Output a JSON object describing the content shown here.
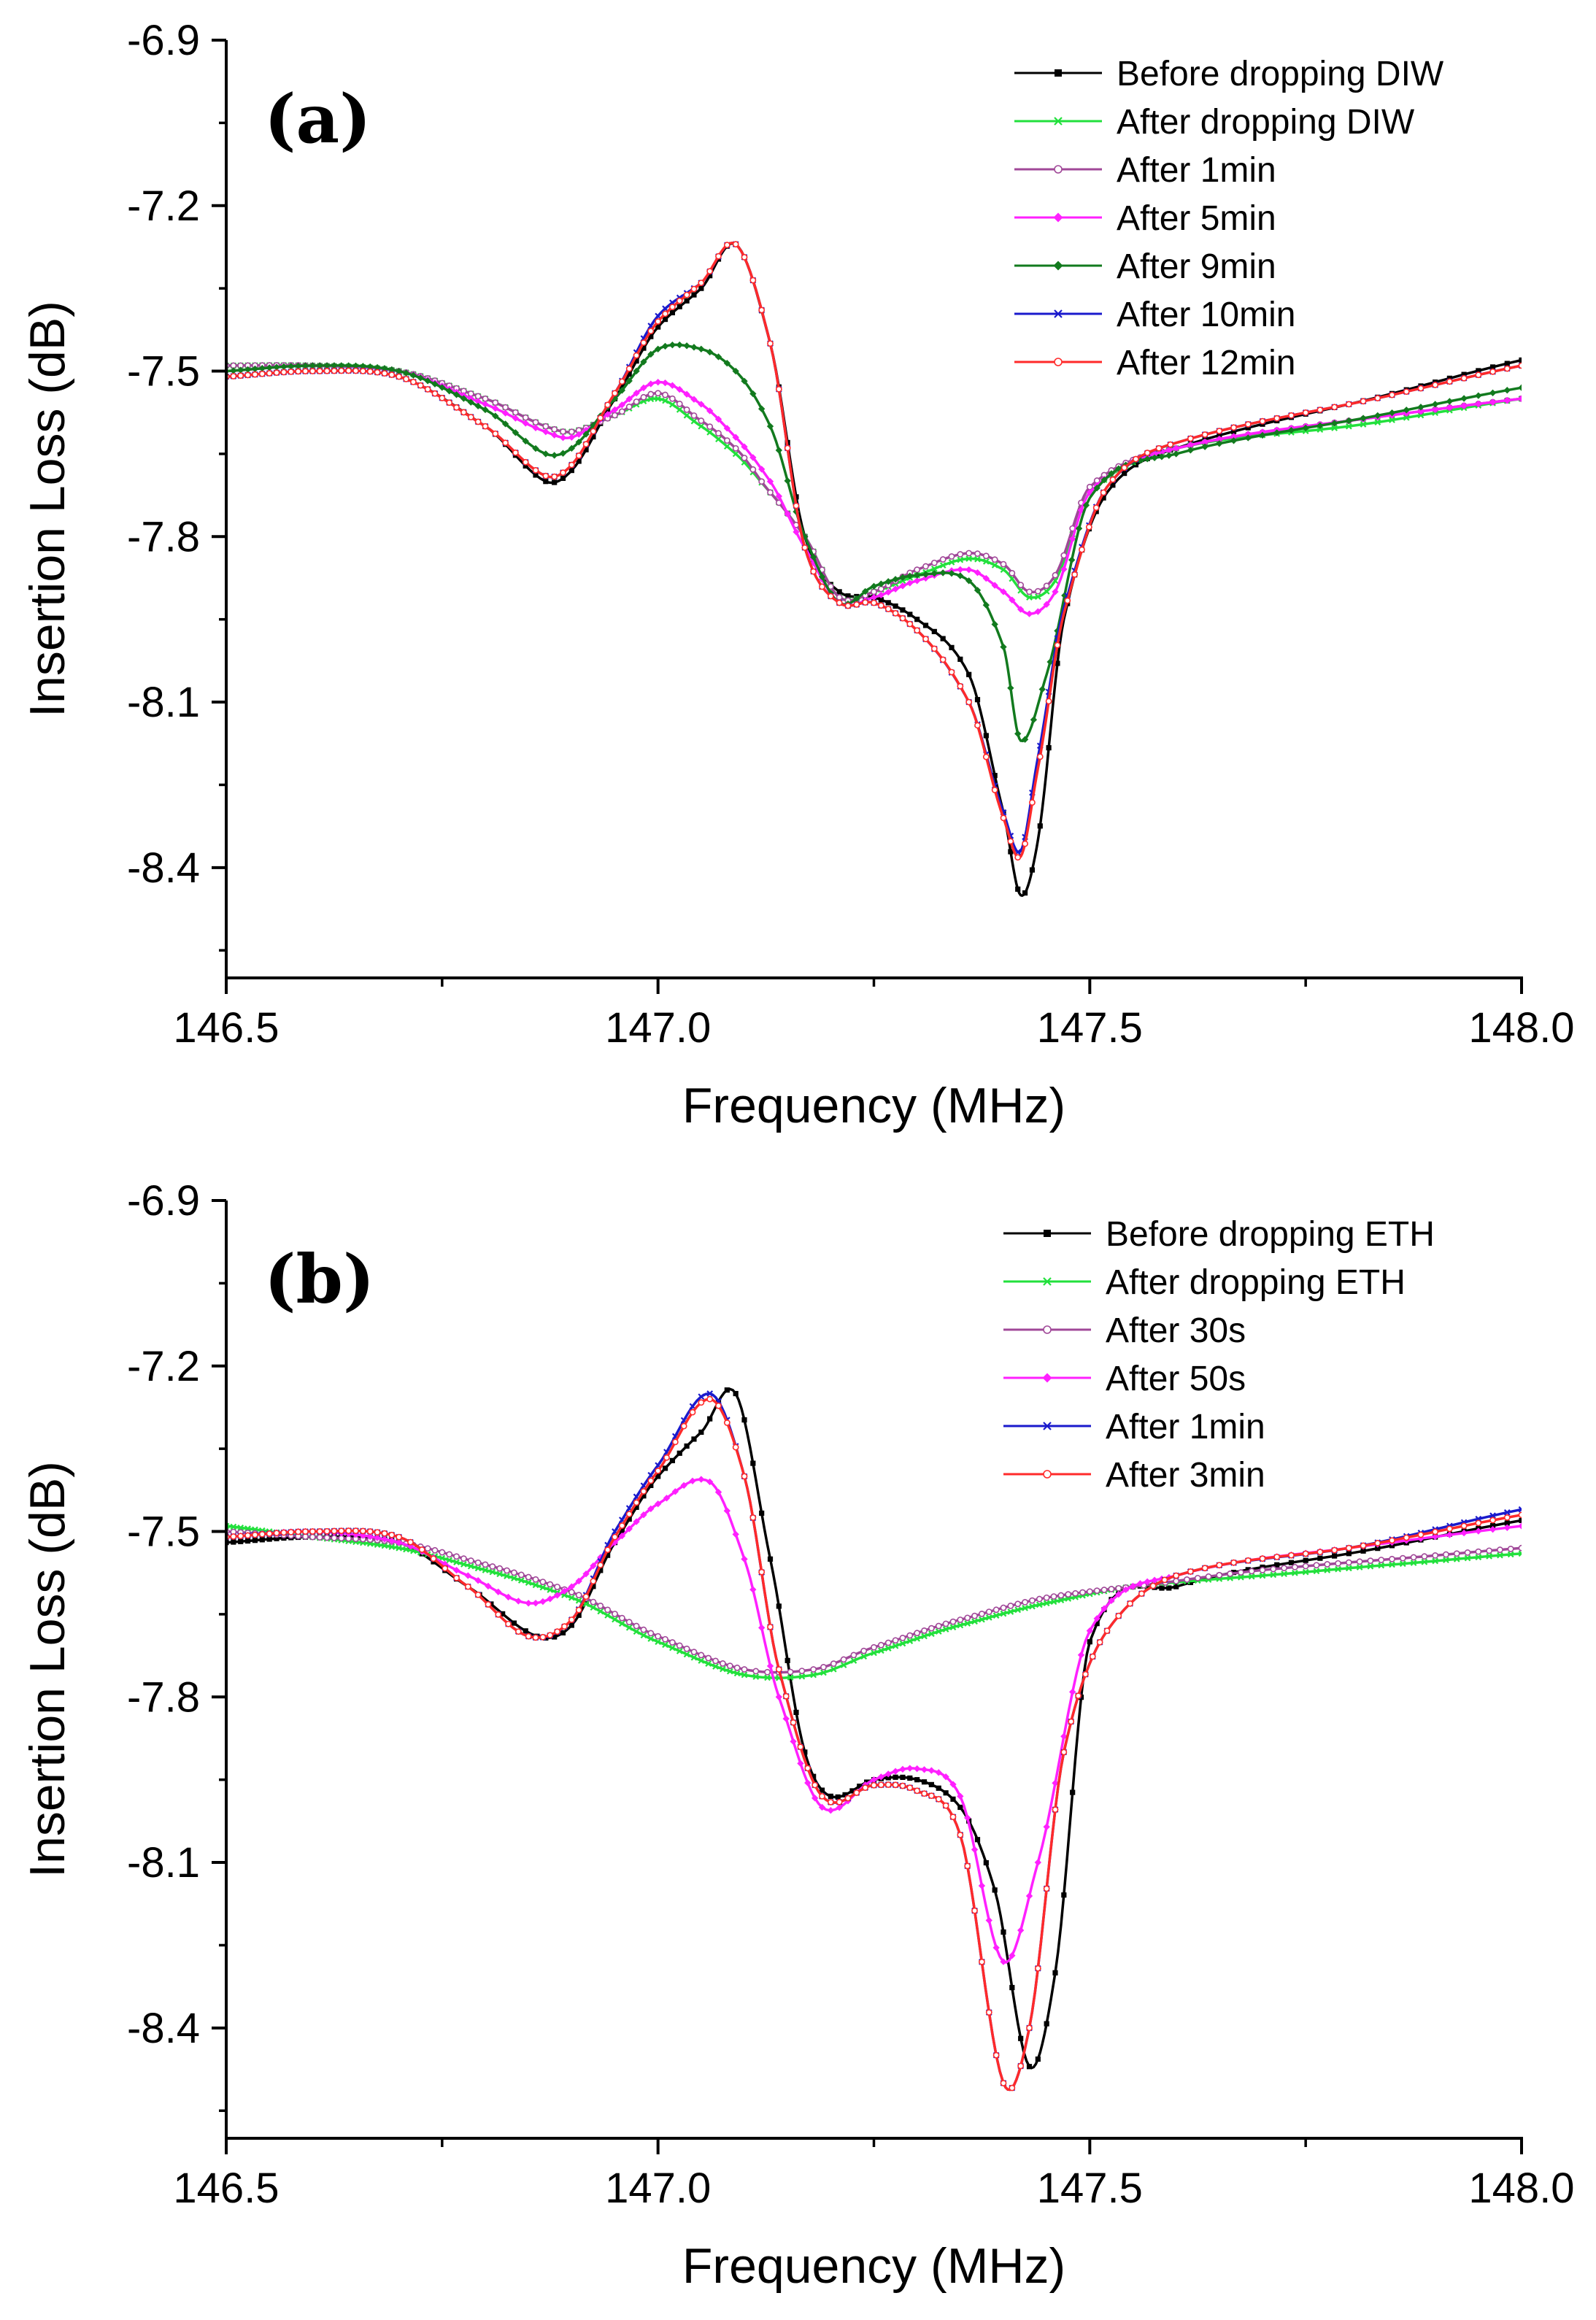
{
  "chart_data": [
    {
      "type": "line",
      "panel_label": "(a)",
      "xlabel": "Frequency (MHz)",
      "ylabel": "Insertion Loss (dB)",
      "xlim": [
        146.5,
        148.0
      ],
      "ylim": [
        -8.6,
        -6.9
      ],
      "x_ticks": [
        "146.5",
        "147.0",
        "147.5",
        "148.0"
      ],
      "x_tick_values": [
        146.5,
        147.0,
        147.5,
        148.0
      ],
      "y_ticks": [
        "-6.9",
        "-7.2",
        "-7.5",
        "-7.8",
        "-8.1",
        "-8.4"
      ],
      "y_tick_values": [
        -6.9,
        -7.2,
        -7.5,
        -7.8,
        -8.1,
        -8.4
      ],
      "legend_position": "top-right",
      "series": [
        {
          "name": "Before dropping DIW",
          "color": "#000000",
          "marker": "square",
          "x": [
            146.5,
            146.6,
            146.7,
            146.8,
            146.87,
            146.9,
            146.95,
            147.0,
            147.05,
            147.09,
            147.13,
            147.17,
            147.21,
            147.25,
            147.3,
            147.36,
            147.4,
            147.42,
            147.44,
            147.47,
            147.52,
            147.6,
            147.8,
            148.0
          ],
          "y": [
            -7.51,
            -7.5,
            -7.51,
            -7.6,
            -7.7,
            -7.68,
            -7.55,
            -7.42,
            -7.35,
            -7.27,
            -7.45,
            -7.8,
            -7.9,
            -7.91,
            -7.95,
            -8.05,
            -8.3,
            -8.45,
            -8.35,
            -7.95,
            -7.72,
            -7.64,
            -7.56,
            -7.48
          ]
        },
        {
          "name": "After dropping DIW",
          "color": "#22e03c",
          "marker": "x",
          "x": [
            146.5,
            146.6,
            146.7,
            146.8,
            146.87,
            146.9,
            146.95,
            147.0,
            147.05,
            147.09,
            147.13,
            147.17,
            147.21,
            147.25,
            147.3,
            147.36,
            147.4,
            147.43,
            147.46,
            147.5,
            147.6,
            147.8,
            148.0
          ],
          "y": [
            -7.49,
            -7.49,
            -7.5,
            -7.55,
            -7.6,
            -7.61,
            -7.58,
            -7.55,
            -7.6,
            -7.65,
            -7.72,
            -7.8,
            -7.91,
            -7.9,
            -7.87,
            -7.84,
            -7.86,
            -7.91,
            -7.88,
            -7.72,
            -7.64,
            -7.6,
            -7.55
          ]
        },
        {
          "name": "After 1min",
          "color": "#a04898",
          "marker": "circle",
          "x": [
            146.5,
            146.6,
            146.7,
            146.8,
            146.87,
            146.9,
            146.95,
            147.0,
            147.05,
            147.09,
            147.13,
            147.17,
            147.21,
            147.25,
            147.3,
            147.36,
            147.4,
            147.43,
            147.46,
            147.5,
            147.6,
            147.8,
            148.0
          ],
          "y": [
            -7.49,
            -7.49,
            -7.5,
            -7.55,
            -7.6,
            -7.61,
            -7.58,
            -7.54,
            -7.59,
            -7.64,
            -7.72,
            -7.8,
            -7.91,
            -7.9,
            -7.86,
            -7.83,
            -7.85,
            -7.9,
            -7.87,
            -7.71,
            -7.64,
            -7.59,
            -7.55
          ]
        },
        {
          "name": "After 5min",
          "color": "#ff20ff",
          "marker": "diamond",
          "x": [
            146.5,
            146.6,
            146.7,
            146.8,
            146.87,
            146.9,
            146.95,
            147.0,
            147.05,
            147.09,
            147.13,
            147.17,
            147.21,
            147.25,
            147.3,
            147.36,
            147.4,
            147.43,
            147.46,
            147.5,
            147.6,
            147.8,
            148.0
          ],
          "y": [
            -7.5,
            -7.49,
            -7.5,
            -7.56,
            -7.61,
            -7.62,
            -7.57,
            -7.52,
            -7.56,
            -7.62,
            -7.7,
            -7.82,
            -7.92,
            -7.91,
            -7.88,
            -7.86,
            -7.9,
            -7.94,
            -7.9,
            -7.72,
            -7.64,
            -7.59,
            -7.55
          ]
        },
        {
          "name": "After 9min",
          "color": "#127a1e",
          "marker": "diamond",
          "x": [
            146.5,
            146.6,
            146.7,
            146.8,
            146.87,
            146.9,
            146.95,
            147.0,
            147.05,
            147.09,
            147.13,
            147.17,
            147.21,
            147.25,
            147.3,
            147.36,
            147.4,
            147.42,
            147.45,
            147.5,
            147.6,
            147.8,
            148.0
          ],
          "y": [
            -7.5,
            -7.49,
            -7.5,
            -7.57,
            -7.65,
            -7.64,
            -7.55,
            -7.46,
            -7.46,
            -7.5,
            -7.6,
            -7.8,
            -7.92,
            -7.89,
            -7.87,
            -7.88,
            -8.0,
            -8.17,
            -8.05,
            -7.73,
            -7.65,
            -7.59,
            -7.53
          ]
        },
        {
          "name": "After 10min",
          "color": "#1a1acc",
          "marker": "x",
          "x": [
            146.5,
            146.6,
            146.7,
            146.8,
            146.87,
            146.9,
            146.95,
            147.0,
            147.05,
            147.09,
            147.13,
            147.17,
            147.21,
            147.25,
            147.3,
            147.36,
            147.4,
            147.42,
            147.44,
            147.47,
            147.52,
            147.6,
            147.8,
            148.0
          ],
          "y": [
            -7.51,
            -7.5,
            -7.51,
            -7.6,
            -7.69,
            -7.67,
            -7.54,
            -7.4,
            -7.34,
            -7.27,
            -7.45,
            -7.82,
            -7.92,
            -7.92,
            -7.97,
            -8.1,
            -8.3,
            -8.37,
            -8.2,
            -7.93,
            -7.71,
            -7.63,
            -7.56,
            -7.49
          ]
        },
        {
          "name": "After 12min",
          "color": "#ff2a2a",
          "marker": "circle",
          "x": [
            146.5,
            146.6,
            146.7,
            146.8,
            146.87,
            146.9,
            146.95,
            147.0,
            147.05,
            147.09,
            147.13,
            147.17,
            147.21,
            147.25,
            147.3,
            147.36,
            147.4,
            147.42,
            147.44,
            147.47,
            147.52,
            147.6,
            147.8,
            148.0
          ],
          "y": [
            -7.51,
            -7.5,
            -7.51,
            -7.6,
            -7.69,
            -7.67,
            -7.54,
            -7.41,
            -7.34,
            -7.27,
            -7.45,
            -7.82,
            -7.92,
            -7.92,
            -7.97,
            -8.1,
            -8.31,
            -8.38,
            -8.22,
            -7.94,
            -7.71,
            -7.63,
            -7.56,
            -7.49
          ]
        }
      ]
    },
    {
      "type": "line",
      "panel_label": "(b)",
      "xlabel": "Frequency (MHz)",
      "ylabel": "Insertion Loss (dB)",
      "xlim": [
        146.5,
        148.0
      ],
      "ylim": [
        -8.6,
        -6.9
      ],
      "x_ticks": [
        "146.5",
        "147.0",
        "147.5",
        "148.0"
      ],
      "x_tick_values": [
        146.5,
        147.0,
        147.5,
        148.0
      ],
      "y_ticks": [
        "-6.9",
        "-7.2",
        "-7.5",
        "-7.8",
        "-8.1",
        "-8.4"
      ],
      "y_tick_values": [
        -6.9,
        -7.2,
        -7.5,
        -7.8,
        -8.1,
        -8.4
      ],
      "legend_position": "top-right",
      "series": [
        {
          "name": "Before dropping ETH",
          "color": "#000000",
          "marker": "square",
          "x": [
            146.5,
            146.6,
            146.7,
            146.78,
            146.86,
            146.9,
            146.95,
            147.0,
            147.05,
            147.09,
            147.13,
            147.17,
            147.2,
            147.25,
            147.3,
            147.35,
            147.39,
            147.43,
            147.46,
            147.5,
            147.6,
            147.8,
            148.0
          ],
          "y": [
            -7.52,
            -7.51,
            -7.52,
            -7.6,
            -7.69,
            -7.67,
            -7.52,
            -7.4,
            -7.32,
            -7.25,
            -7.55,
            -7.9,
            -7.98,
            -7.95,
            -7.95,
            -8.0,
            -8.15,
            -8.47,
            -8.3,
            -7.7,
            -7.6,
            -7.54,
            -7.48
          ]
        },
        {
          "name": "After dropping ETH",
          "color": "#22e03c",
          "marker": "x",
          "x": [
            146.5,
            146.6,
            146.7,
            146.8,
            146.9,
            147.0,
            147.1,
            147.18,
            147.25,
            147.35,
            147.45,
            147.55,
            147.7,
            147.85,
            148.0
          ],
          "y": [
            -7.49,
            -7.51,
            -7.53,
            -7.57,
            -7.62,
            -7.7,
            -7.76,
            -7.76,
            -7.72,
            -7.67,
            -7.63,
            -7.6,
            -7.58,
            -7.56,
            -7.54
          ]
        },
        {
          "name": "After 30s",
          "color": "#a04898",
          "marker": "circle",
          "x": [
            146.5,
            146.6,
            146.7,
            146.8,
            146.9,
            147.0,
            147.1,
            147.18,
            147.25,
            147.35,
            147.45,
            147.55,
            147.7,
            147.85,
            148.0
          ],
          "y": [
            -7.5,
            -7.51,
            -7.52,
            -7.56,
            -7.61,
            -7.69,
            -7.75,
            -7.75,
            -7.71,
            -7.66,
            -7.62,
            -7.6,
            -7.57,
            -7.55,
            -7.53
          ]
        },
        {
          "name": "After 50s",
          "color": "#ff20ff",
          "marker": "diamond",
          "x": [
            146.5,
            146.6,
            146.7,
            146.78,
            146.85,
            146.9,
            146.95,
            147.0,
            147.06,
            147.1,
            147.14,
            147.19,
            147.25,
            147.3,
            147.35,
            147.4,
            147.44,
            147.5,
            147.6,
            147.8,
            148.0
          ],
          "y": [
            -7.51,
            -7.5,
            -7.52,
            -7.58,
            -7.63,
            -7.6,
            -7.52,
            -7.45,
            -7.41,
            -7.55,
            -7.8,
            -8.0,
            -7.95,
            -7.93,
            -7.98,
            -8.28,
            -8.1,
            -7.68,
            -7.58,
            -7.53,
            -7.49
          ]
        },
        {
          "name": "After 1min",
          "color": "#1a1acc",
          "marker": "x",
          "x": [
            146.5,
            146.6,
            146.7,
            146.78,
            146.85,
            146.9,
            146.95,
            147.0,
            147.06,
            147.1,
            147.14,
            147.19,
            147.25,
            147.3,
            147.35,
            147.4,
            147.43,
            147.47,
            147.52,
            147.6,
            147.8,
            148.0
          ],
          "y": [
            -7.51,
            -7.5,
            -7.51,
            -7.6,
            -7.69,
            -7.66,
            -7.5,
            -7.38,
            -7.25,
            -7.4,
            -7.75,
            -7.98,
            -7.96,
            -7.97,
            -8.05,
            -8.5,
            -8.4,
            -7.9,
            -7.68,
            -7.58,
            -7.53,
            -7.46
          ]
        },
        {
          "name": "After 3min",
          "color": "#ff2a2a",
          "marker": "circle",
          "x": [
            146.5,
            146.6,
            146.7,
            146.78,
            146.85,
            146.9,
            146.95,
            147.0,
            147.06,
            147.1,
            147.14,
            147.19,
            147.25,
            147.3,
            147.35,
            147.4,
            147.43,
            147.47,
            147.52,
            147.6,
            147.8,
            148.0
          ],
          "y": [
            -7.51,
            -7.5,
            -7.51,
            -7.6,
            -7.69,
            -7.66,
            -7.51,
            -7.39,
            -7.26,
            -7.4,
            -7.75,
            -7.98,
            -7.96,
            -7.97,
            -8.05,
            -8.5,
            -8.4,
            -7.9,
            -7.68,
            -7.58,
            -7.53,
            -7.47
          ]
        }
      ]
    }
  ]
}
